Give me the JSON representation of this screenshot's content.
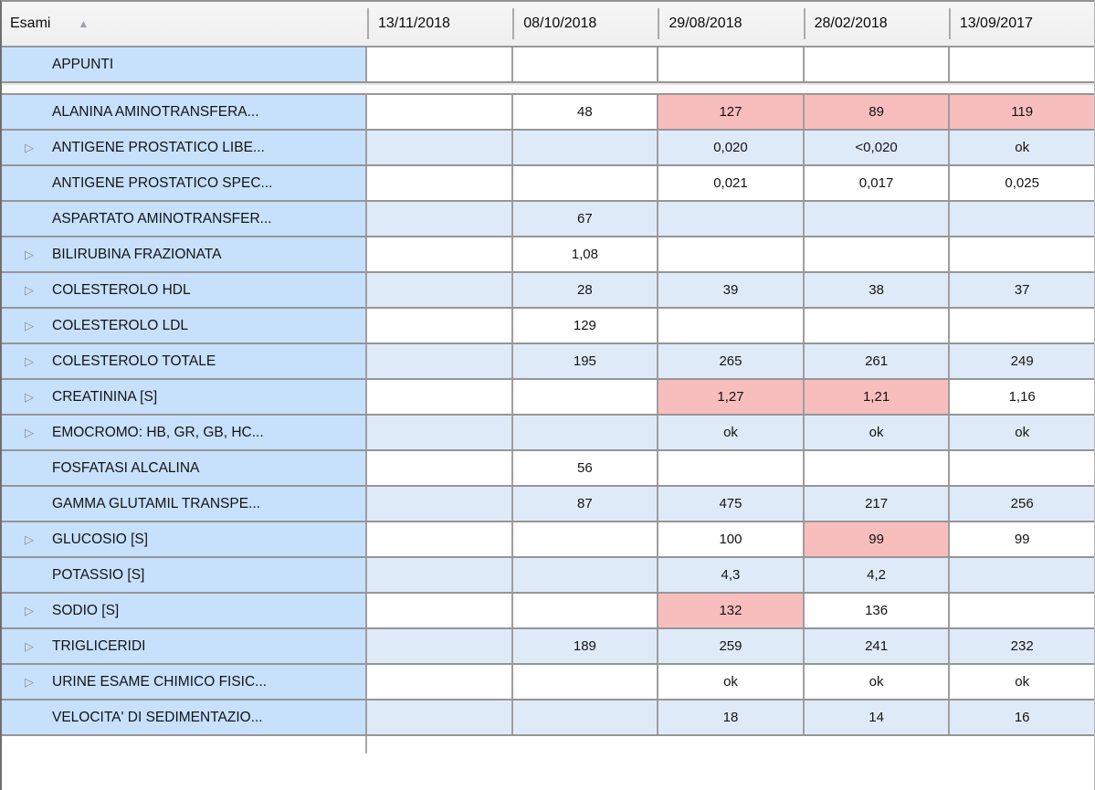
{
  "table": {
    "header": {
      "exam_column_label": "Esami",
      "sort_icon": "sort-ascending-triangle",
      "sort_glyph": "▲",
      "date_columns": [
        "13/11/2018",
        "08/10/2018",
        "29/08/2018",
        "28/02/2018",
        "13/09/2017"
      ]
    },
    "icons": {
      "expand_glyph": "▷"
    },
    "colors": {
      "name_column_bg": "#c7e0fb",
      "alt_row_bg": "#dfeaf9",
      "abnormal_bg": "#f8bdbd",
      "normal_bg": "#ffffff",
      "header_bg": "#f2f2f2",
      "grid_border": "#969696"
    },
    "rows": [
      {
        "name": "APPUNTI",
        "expandable": false,
        "alt": false,
        "values": [
          "",
          "",
          "",
          "",
          ""
        ],
        "abnormal": [
          false,
          false,
          false,
          false,
          false
        ],
        "separator_after": true
      },
      {
        "name": "ALANINA AMINOTRANSFERA...",
        "expandable": false,
        "alt": false,
        "values": [
          "",
          "48",
          "127",
          "89",
          "119"
        ],
        "abnormal": [
          false,
          false,
          true,
          true,
          true
        ]
      },
      {
        "name": "ANTIGENE PROSTATICO LIBE...",
        "expandable": true,
        "alt": true,
        "values": [
          "",
          "",
          "0,020",
          "<0,020",
          "ok"
        ],
        "abnormal": [
          false,
          false,
          true,
          false,
          true
        ]
      },
      {
        "name": "ANTIGENE PROSTATICO SPEC...",
        "expandable": false,
        "alt": false,
        "values": [
          "",
          "",
          "0,021",
          "0,017",
          "0,025"
        ],
        "abnormal": [
          false,
          false,
          false,
          false,
          false
        ]
      },
      {
        "name": "ASPARTATO AMINOTRANSFER...",
        "expandable": false,
        "alt": true,
        "values": [
          "",
          "67",
          "",
          "",
          ""
        ],
        "abnormal": [
          false,
          true,
          false,
          false,
          false
        ]
      },
      {
        "name": "BILIRUBINA FRAZIONATA",
        "expandable": true,
        "alt": false,
        "values": [
          "",
          "1,08",
          "",
          "",
          ""
        ],
        "abnormal": [
          false,
          false,
          false,
          false,
          false
        ]
      },
      {
        "name": "COLESTEROLO HDL",
        "expandable": true,
        "alt": true,
        "values": [
          "",
          "28",
          "39",
          "38",
          "37"
        ],
        "abnormal": [
          false,
          true,
          true,
          true,
          true
        ]
      },
      {
        "name": "COLESTEROLO LDL",
        "expandable": true,
        "alt": false,
        "values": [
          "",
          "129",
          "",
          "",
          ""
        ],
        "abnormal": [
          false,
          false,
          false,
          false,
          false
        ]
      },
      {
        "name": "COLESTEROLO TOTALE",
        "expandable": true,
        "alt": true,
        "values": [
          "",
          "195",
          "265",
          "261",
          "249"
        ],
        "abnormal": [
          false,
          false,
          true,
          true,
          true
        ]
      },
      {
        "name": "CREATININA [S]",
        "expandable": true,
        "alt": false,
        "values": [
          "",
          "",
          "1,27",
          "1,21",
          "1,16"
        ],
        "abnormal": [
          false,
          false,
          true,
          true,
          false
        ]
      },
      {
        "name": "EMOCROMO: HB, GR, GB, HC...",
        "expandable": true,
        "alt": true,
        "values": [
          "",
          "",
          "ok",
          "ok",
          "ok"
        ],
        "abnormal": [
          false,
          false,
          false,
          false,
          false
        ]
      },
      {
        "name": "FOSFATASI ALCALINA",
        "expandable": false,
        "alt": false,
        "values": [
          "",
          "56",
          "",
          "",
          ""
        ],
        "abnormal": [
          false,
          false,
          false,
          false,
          false
        ]
      },
      {
        "name": "GAMMA GLUTAMIL TRANSPE...",
        "expandable": false,
        "alt": true,
        "values": [
          "",
          "87",
          "475",
          "217",
          "256"
        ],
        "abnormal": [
          false,
          true,
          true,
          true,
          true
        ]
      },
      {
        "name": "GLUCOSIO [S]",
        "expandable": true,
        "alt": false,
        "values": [
          "",
          "",
          "100",
          "99",
          "99"
        ],
        "abnormal": [
          false,
          false,
          false,
          true,
          false
        ]
      },
      {
        "name": "POTASSIO [S]",
        "expandable": false,
        "alt": true,
        "values": [
          "",
          "",
          "4,3",
          "4,2",
          ""
        ],
        "abnormal": [
          false,
          false,
          false,
          false,
          false
        ]
      },
      {
        "name": "SODIO [S]",
        "expandable": true,
        "alt": false,
        "values": [
          "",
          "",
          "132",
          "136",
          ""
        ],
        "abnormal": [
          false,
          false,
          true,
          false,
          false
        ]
      },
      {
        "name": "TRIGLICERIDI",
        "expandable": true,
        "alt": true,
        "values": [
          "",
          "189",
          "259",
          "241",
          "232"
        ],
        "abnormal": [
          false,
          true,
          true,
          true,
          true
        ]
      },
      {
        "name": "URINE ESAME CHIMICO FISIC...",
        "expandable": true,
        "alt": false,
        "values": [
          "",
          "",
          "ok",
          "ok",
          "ok"
        ],
        "abnormal": [
          false,
          false,
          false,
          false,
          false
        ]
      },
      {
        "name": "VELOCITA' DI SEDIMENTAZIO...",
        "expandable": false,
        "alt": true,
        "values": [
          "",
          "",
          "18",
          "14",
          "16"
        ],
        "abnormal": [
          false,
          false,
          false,
          false,
          false
        ]
      }
    ]
  }
}
